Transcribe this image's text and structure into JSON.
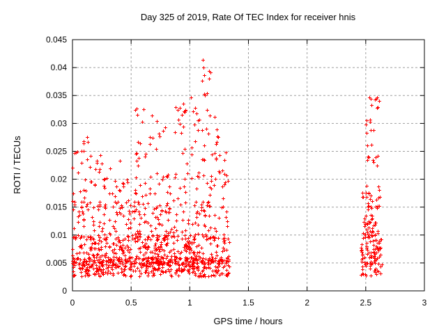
{
  "chart_data": {
    "type": "scatter",
    "title": "Day 325 of 2019, Rate Of TEC Index for receiver hnis",
    "xlabel": "GPS time / hours",
    "ylabel": "ROTI / TECUs",
    "xlim": [
      0,
      3
    ],
    "ylim": [
      0,
      0.045
    ],
    "xticks": {
      "values": [
        0,
        0.5,
        1,
        1.5,
        2,
        2.5,
        3
      ],
      "labels": [
        "0",
        "0.5",
        "1",
        "1.5",
        "2",
        "2.5",
        "3"
      ]
    },
    "yticks": {
      "values": [
        0,
        0.005,
        0.01,
        0.015,
        0.02,
        0.025,
        0.03,
        0.035,
        0.04,
        0.045
      ],
      "labels": [
        "0",
        "0.005",
        "0.01",
        "0.015",
        "0.02",
        "0.025",
        "0.03",
        "0.035",
        "0.04",
        "0.045"
      ]
    },
    "grid": true,
    "grid_color": "#9e9e9e",
    "axis_color": "#000000",
    "background_color": "#ffffff",
    "legend": "none",
    "marker": {
      "shape": "plus",
      "color": "#ff0000",
      "size": 5
    },
    "series": [
      {
        "name": "ROTI",
        "color": "#ff0000",
        "seed": 7,
        "clusters": [
          {
            "x_min": 0.0,
            "x_max": 1.34,
            "y_min": 0.0026,
            "y_max": 0.006,
            "count": 400
          },
          {
            "x_min": 0.0,
            "x_max": 1.34,
            "y_min": 0.0045,
            "y_max": 0.01,
            "count": 330
          },
          {
            "x_min": 0.0,
            "x_max": 1.34,
            "y_min": 0.009,
            "y_max": 0.016,
            "count": 190
          },
          {
            "x_min": 0.0,
            "x_max": 1.32,
            "y_min": 0.014,
            "y_max": 0.0205,
            "count": 90
          },
          {
            "x_min": 0.0,
            "x_max": 0.16,
            "y_min": 0.0195,
            "y_max": 0.028,
            "count": 16
          },
          {
            "x_min": 0.17,
            "x_max": 0.45,
            "y_min": 0.0195,
            "y_max": 0.026,
            "count": 10
          },
          {
            "x_min": 0.5,
            "x_max": 1.06,
            "y_min": 0.02,
            "y_max": 0.033,
            "count": 52
          },
          {
            "x_min": 0.93,
            "x_max": 1.05,
            "y_min": 0.032,
            "y_max": 0.0348,
            "count": 5
          },
          {
            "x_min": 1.06,
            "x_max": 1.24,
            "y_min": 0.02,
            "y_max": 0.033,
            "count": 26
          },
          {
            "x_min": 1.1,
            "x_max": 1.19,
            "y_min": 0.0345,
            "y_max": 0.0437,
            "count": 10
          },
          {
            "x_min": 1.24,
            "x_max": 1.34,
            "y_min": 0.017,
            "y_max": 0.0295,
            "count": 12
          },
          {
            "x_min": 2.46,
            "x_max": 2.64,
            "y_min": 0.0027,
            "y_max": 0.008,
            "count": 62
          },
          {
            "x_min": 2.46,
            "x_max": 2.64,
            "y_min": 0.006,
            "y_max": 0.013,
            "count": 58
          },
          {
            "x_min": 2.47,
            "x_max": 2.63,
            "y_min": 0.012,
            "y_max": 0.019,
            "count": 36
          },
          {
            "x_min": 2.5,
            "x_max": 2.61,
            "y_min": 0.022,
            "y_max": 0.028,
            "count": 10
          },
          {
            "x_min": 2.49,
            "x_max": 2.58,
            "y_min": 0.028,
            "y_max": 0.031,
            "count": 7
          },
          {
            "x_min": 2.52,
            "x_max": 2.62,
            "y_min": 0.032,
            "y_max": 0.035,
            "count": 9
          }
        ]
      }
    ]
  }
}
